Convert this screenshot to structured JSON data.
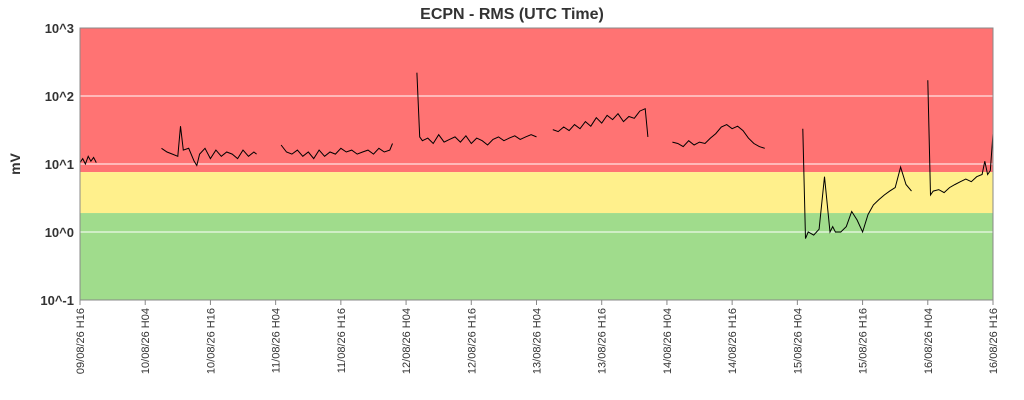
{
  "chart_data": {
    "type": "line",
    "title": "ECPN - RMS (UTC Time)",
    "xlabel": "",
    "ylabel": "mV",
    "y_scale": "log",
    "ylim": [
      0.1,
      1000
    ],
    "y_tick_labels": [
      "10^3",
      "10^2",
      "10^1",
      "10^0",
      "10^-1"
    ],
    "y_tick_values": [
      1000,
      100,
      10,
      1,
      0.1
    ],
    "x_range": [
      "2026-08-09 16:00",
      "2026-08-16 16:00"
    ],
    "x_tick_labels": [
      "09/08/26 H16",
      "10/08/26 H04",
      "10/08/26 H16",
      "11/08/26 H04",
      "11/08/26 H16",
      "12/08/26 H04",
      "12/08/26 H16",
      "13/08/26 H04",
      "13/08/26 H16",
      "14/08/26 H04",
      "14/08/26 H16",
      "15/08/26 H04",
      "15/08/26 H16",
      "16/08/26 H04",
      "16/08/26 H16"
    ],
    "x_tick_values": [
      "2026-08-09 16:00",
      "2026-08-10 04:00",
      "2026-08-10 16:00",
      "2026-08-11 04:00",
      "2026-08-11 16:00",
      "2026-08-12 04:00",
      "2026-08-12 16:00",
      "2026-08-13 04:00",
      "2026-08-13 16:00",
      "2026-08-14 04:00",
      "2026-08-14 16:00",
      "2026-08-15 04:00",
      "2026-08-15 16:00",
      "2026-08-16 04:00",
      "2026-08-16 16:00"
    ],
    "grid": true,
    "bands": [
      {
        "from": 7.6,
        "to": 1000,
        "color": "#ff7373"
      },
      {
        "from": 1.9,
        "to": 7.6,
        "color": "#fff08c"
      },
      {
        "from": 0.1,
        "to": 1.9,
        "color": "#a0dc8c"
      }
    ],
    "series_color": "#000000",
    "segments": [
      {
        "x": [
          "2026-08-09 16:00",
          "2026-08-09 16:30",
          "2026-08-09 17:00",
          "2026-08-09 17:30",
          "2026-08-09 18:00",
          "2026-08-09 18:30",
          "2026-08-09 19:00"
        ],
        "y": [
          10.5,
          12,
          10,
          13,
          11,
          12.5,
          10.5
        ]
      },
      {
        "x": [
          "2026-08-10 07:00",
          "2026-08-10 08:00",
          "2026-08-10 09:00",
          "2026-08-10 10:00",
          "2026-08-10 10:30",
          "2026-08-10 11:00",
          "2026-08-10 12:00",
          "2026-08-10 13:00",
          "2026-08-10 13:30",
          "2026-08-10 14:00",
          "2026-08-10 15:00",
          "2026-08-10 16:00",
          "2026-08-10 17:00",
          "2026-08-10 18:00",
          "2026-08-10 19:00",
          "2026-08-10 20:00",
          "2026-08-10 21:00",
          "2026-08-10 22:00",
          "2026-08-10 23:00",
          "2026-08-11 00:00",
          "2026-08-11 00:30"
        ],
        "y": [
          17,
          15,
          14,
          13,
          36,
          16,
          17,
          11,
          9.5,
          14,
          17,
          12,
          16,
          13,
          15,
          14,
          12,
          16,
          13,
          15,
          14
        ]
      },
      {
        "x": [
          "2026-08-11 05:00",
          "2026-08-11 06:00",
          "2026-08-11 07:00",
          "2026-08-11 08:00",
          "2026-08-11 09:00",
          "2026-08-11 10:00",
          "2026-08-11 11:00",
          "2026-08-11 12:00",
          "2026-08-11 13:00",
          "2026-08-11 14:00",
          "2026-08-11 15:00",
          "2026-08-11 16:00",
          "2026-08-11 17:00",
          "2026-08-11 18:00",
          "2026-08-11 19:00",
          "2026-08-11 20:00",
          "2026-08-11 21:00",
          "2026-08-11 22:00",
          "2026-08-11 23:00",
          "2026-08-12 00:00",
          "2026-08-12 01:00",
          "2026-08-12 01:30"
        ],
        "y": [
          19,
          15,
          14,
          16,
          13,
          15,
          12,
          16,
          13,
          15,
          14,
          17,
          15,
          16,
          14,
          15,
          16,
          14,
          17,
          15,
          16,
          20
        ]
      },
      {
        "x": [
          "2026-08-12 06:00",
          "2026-08-12 06:30",
          "2026-08-12 07:00",
          "2026-08-12 08:00",
          "2026-08-12 09:00",
          "2026-08-12 10:00",
          "2026-08-12 11:00",
          "2026-08-12 12:00",
          "2026-08-12 13:00",
          "2026-08-12 14:00",
          "2026-08-12 15:00",
          "2026-08-12 16:00",
          "2026-08-12 17:00",
          "2026-08-12 18:00",
          "2026-08-12 19:00",
          "2026-08-12 20:00",
          "2026-08-12 21:00",
          "2026-08-12 22:00",
          "2026-08-12 23:00",
          "2026-08-13 00:00",
          "2026-08-13 01:00",
          "2026-08-13 02:00",
          "2026-08-13 03:00",
          "2026-08-13 04:00"
        ],
        "y": [
          220,
          25,
          22,
          24,
          20,
          27,
          21,
          23,
          25,
          21,
          26,
          20,
          24,
          22,
          19,
          23,
          25,
          22,
          24,
          26,
          23,
          25,
          27,
          25
        ]
      },
      {
        "x": [
          "2026-08-13 07:00",
          "2026-08-13 08:00",
          "2026-08-13 09:00",
          "2026-08-13 10:00",
          "2026-08-13 11:00",
          "2026-08-13 12:00",
          "2026-08-13 13:00",
          "2026-08-13 14:00",
          "2026-08-13 15:00",
          "2026-08-13 16:00",
          "2026-08-13 17:00",
          "2026-08-13 18:00",
          "2026-08-13 19:00",
          "2026-08-13 20:00",
          "2026-08-13 21:00",
          "2026-08-13 22:00",
          "2026-08-13 23:00",
          "2026-08-14 00:00",
          "2026-08-14 00:30"
        ],
        "y": [
          32,
          30,
          35,
          31,
          38,
          33,
          42,
          36,
          48,
          40,
          52,
          45,
          55,
          42,
          50,
          47,
          60,
          65,
          25
        ]
      },
      {
        "x": [
          "2026-08-14 05:00",
          "2026-08-14 06:00",
          "2026-08-14 07:00",
          "2026-08-14 08:00",
          "2026-08-14 09:00",
          "2026-08-14 10:00",
          "2026-08-14 11:00",
          "2026-08-14 12:00",
          "2026-08-14 13:00",
          "2026-08-14 14:00",
          "2026-08-14 15:00",
          "2026-08-14 16:00",
          "2026-08-14 17:00",
          "2026-08-14 18:00",
          "2026-08-14 19:00",
          "2026-08-14 20:00",
          "2026-08-14 21:00",
          "2026-08-14 22:00"
        ],
        "y": [
          21,
          20,
          18,
          22,
          19,
          21,
          20,
          24,
          28,
          35,
          38,
          33,
          36,
          31,
          24,
          20,
          18,
          17
        ]
      },
      {
        "x": [
          "2026-08-15 05:00",
          "2026-08-15 05:30",
          "2026-08-15 06:00",
          "2026-08-15 07:00",
          "2026-08-15 08:00",
          "2026-08-15 09:00",
          "2026-08-15 10:00",
          "2026-08-15 10:30",
          "2026-08-15 11:00",
          "2026-08-15 12:00",
          "2026-08-15 13:00",
          "2026-08-15 14:00",
          "2026-08-15 15:00",
          "2026-08-15 16:00",
          "2026-08-15 17:00",
          "2026-08-15 18:00",
          "2026-08-15 19:00",
          "2026-08-15 20:00",
          "2026-08-15 21:00",
          "2026-08-15 22:00",
          "2026-08-15 23:00",
          "2026-08-16 00:00",
          "2026-08-16 01:00"
        ],
        "y": [
          33,
          0.8,
          1.0,
          0.9,
          1.1,
          6.5,
          1.0,
          1.2,
          1.0,
          1.0,
          1.2,
          2.0,
          1.5,
          1.0,
          1.8,
          2.5,
          3.0,
          3.5,
          4.0,
          4.5,
          9.0,
          5.0,
          4.0
        ]
      },
      {
        "x": [
          "2026-08-16 04:00",
          "2026-08-16 04:30",
          "2026-08-16 05:00",
          "2026-08-16 06:00",
          "2026-08-16 07:00",
          "2026-08-16 08:00",
          "2026-08-16 09:00",
          "2026-08-16 10:00",
          "2026-08-16 11:00",
          "2026-08-16 12:00",
          "2026-08-16 13:00",
          "2026-08-16 14:00",
          "2026-08-16 14:30",
          "2026-08-16 15:00",
          "2026-08-16 15:30",
          "2026-08-16 16:00"
        ],
        "y": [
          170,
          3.5,
          4.0,
          4.2,
          3.8,
          4.5,
          5.0,
          5.5,
          6.0,
          5.5,
          6.5,
          7.0,
          11,
          7.0,
          8.0,
          28
        ]
      }
    ]
  }
}
